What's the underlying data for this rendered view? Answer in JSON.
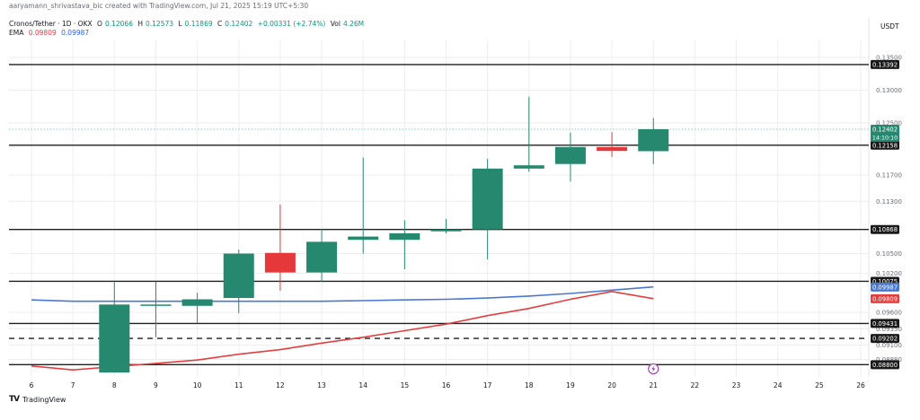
{
  "header": {
    "credit": "aaryamann_shrivastava_bic created with TradingView.com, Jul 21, 2025 15:19 UTC+5:30",
    "symbol": "Cronos/Tether · 1D · OKX",
    "o_label": "O",
    "o_value": "0.12066",
    "h_label": "H",
    "h_value": "0.12573",
    "l_label": "L",
    "l_value": "0.11869",
    "c_label": "C",
    "c_value": "0.12402",
    "change": "+0.00331 (+2.74%)",
    "vol_label": "Vol",
    "vol_value": "4.26M",
    "ema_label": "EMA",
    "ema_a": "0.09809",
    "ema_b": "0.09987"
  },
  "unit": "USDT",
  "brand": {
    "logo": "TV",
    "name": "TradingView"
  },
  "colors": {
    "up": "#26896f",
    "down": "#e5383b",
    "ema_fast": "#e53e3e",
    "ema_slow": "#4a78d0",
    "level": "#1f1f1f",
    "price_line": "#7fcfbf",
    "grid": "#eeeeee"
  },
  "chart_data": {
    "type": "candlestick",
    "symbol": "Cronos/Tether",
    "interval": "1D",
    "exchange": "OKX",
    "ylim": [
      0.0864,
      0.1372
    ],
    "x_ticks": [
      "6",
      "7",
      "8",
      "9",
      "10",
      "11",
      "12",
      "13",
      "14",
      "15",
      "16",
      "17",
      "18",
      "19",
      "20",
      "21",
      "22",
      "23",
      "24",
      "25",
      "26"
    ],
    "y_ticks": [
      "0.13500",
      "0.13000",
      "0.12500",
      "0.11700",
      "0.11300",
      "0.10500",
      "0.10200",
      "0.09600",
      "0.09350",
      "0.09100",
      "0.08880"
    ],
    "candles": [
      {
        "day": "8",
        "open": 0.0868,
        "high": 0.1006,
        "low": 0.0868,
        "close": 0.0972
      },
      {
        "day": "9",
        "open": 0.0971,
        "high": 0.1007,
        "low": 0.0922,
        "close": 0.0972
      },
      {
        "day": "10",
        "open": 0.097,
        "high": 0.099,
        "low": 0.0943,
        "close": 0.098
      },
      {
        "day": "11",
        "open": 0.0982,
        "high": 0.1056,
        "low": 0.0959,
        "close": 0.105
      },
      {
        "day": "12",
        "open": 0.1051,
        "high": 0.1125,
        "low": 0.0993,
        "close": 0.1021
      },
      {
        "day": "13",
        "open": 0.1021,
        "high": 0.1088,
        "low": 0.1007,
        "close": 0.1068
      },
      {
        "day": "14",
        "open": 0.1071,
        "high": 0.1197,
        "low": 0.105,
        "close": 0.1076
      },
      {
        "day": "15",
        "open": 0.1071,
        "high": 0.1101,
        "low": 0.1026,
        "close": 0.1081
      },
      {
        "day": "16",
        "open": 0.1084,
        "high": 0.1103,
        "low": 0.1081,
        "close": 0.1087
      },
      {
        "day": "17",
        "open": 0.1087,
        "high": 0.1195,
        "low": 0.1041,
        "close": 0.118
      },
      {
        "day": "18",
        "open": 0.118,
        "high": 0.129,
        "low": 0.1175,
        "close": 0.1185
      },
      {
        "day": "19",
        "open": 0.1187,
        "high": 0.1235,
        "low": 0.116,
        "close": 0.1213
      },
      {
        "day": "20",
        "open": 0.1213,
        "high": 0.1236,
        "low": 0.1198,
        "close": 0.1207
      },
      {
        "day": "21",
        "open": 0.12066,
        "high": 0.12573,
        "low": 0.11869,
        "close": 0.12402
      }
    ],
    "ema_fast": {
      "name": "0.09809",
      "points": [
        {
          "day": "6",
          "value": 0.0878
        },
        {
          "day": "7",
          "value": 0.0872
        },
        {
          "day": "8",
          "value": 0.0877
        },
        {
          "day": "9",
          "value": 0.0882
        },
        {
          "day": "10",
          "value": 0.0887
        },
        {
          "day": "11",
          "value": 0.0896
        },
        {
          "day": "12",
          "value": 0.0903
        },
        {
          "day": "13",
          "value": 0.0913
        },
        {
          "day": "14",
          "value": 0.0922
        },
        {
          "day": "15",
          "value": 0.0932
        },
        {
          "day": "16",
          "value": 0.0942
        },
        {
          "day": "17",
          "value": 0.0955
        },
        {
          "day": "18",
          "value": 0.0966
        },
        {
          "day": "19",
          "value": 0.098
        },
        {
          "day": "20",
          "value": 0.0992
        },
        {
          "day": "21",
          "value": 0.0981
        }
      ]
    },
    "ema_slow": {
      "name": "0.09987",
      "points": [
        {
          "day": "6",
          "value": 0.0979
        },
        {
          "day": "7",
          "value": 0.0977
        },
        {
          "day": "8",
          "value": 0.0977
        },
        {
          "day": "9",
          "value": 0.0977
        },
        {
          "day": "10",
          "value": 0.0977
        },
        {
          "day": "11",
          "value": 0.0977
        },
        {
          "day": "12",
          "value": 0.0977
        },
        {
          "day": "13",
          "value": 0.0977
        },
        {
          "day": "14",
          "value": 0.0978
        },
        {
          "day": "15",
          "value": 0.0979
        },
        {
          "day": "16",
          "value": 0.098
        },
        {
          "day": "17",
          "value": 0.0982
        },
        {
          "day": "18",
          "value": 0.0985
        },
        {
          "day": "19",
          "value": 0.0989
        },
        {
          "day": "20",
          "value": 0.0994
        },
        {
          "day": "21",
          "value": 0.0999
        }
      ]
    },
    "levels": [
      {
        "value": 0.13392,
        "label": "0.13392",
        "style": "solid"
      },
      {
        "value": 0.12158,
        "label": "0.12158",
        "style": "solid"
      },
      {
        "value": 0.10868,
        "label": "0.10868",
        "style": "solid"
      },
      {
        "value": 0.10075,
        "label": "0.10075",
        "style": "solid"
      },
      {
        "value": 0.09431,
        "label": "0.09431",
        "style": "solid"
      },
      {
        "value": 0.09202,
        "label": "0.09202",
        "style": "dashed"
      },
      {
        "value": 0.088,
        "label": "0.08800",
        "style": "solid"
      }
    ],
    "last_price": {
      "value": 0.12402,
      "label": "0.12402",
      "countdown": "14:10:10"
    },
    "ema_badges": [
      {
        "value": 0.09987,
        "label": "0.09987",
        "series": "ema_slow"
      },
      {
        "value": 0.09809,
        "label": "0.09809",
        "series": "ema_fast"
      }
    ],
    "event_marker": {
      "day": "21",
      "icon": "lightning-icon"
    }
  }
}
